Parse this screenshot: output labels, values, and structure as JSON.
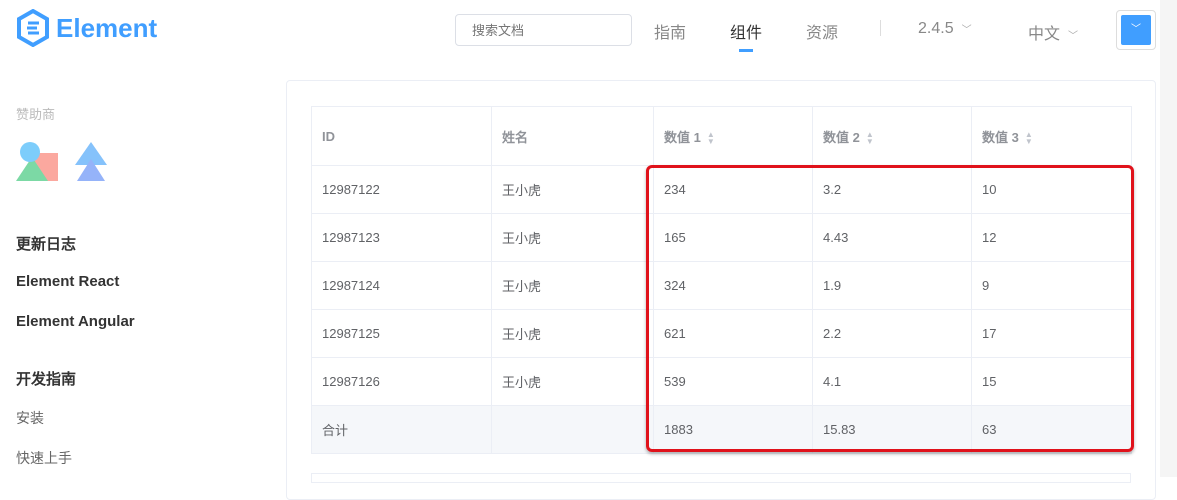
{
  "header": {
    "logo_text": "Element",
    "search_placeholder": "搜索文档",
    "nav": [
      "指南",
      "组件",
      "资源"
    ],
    "active_nav": "组件",
    "version": "2.4.5",
    "language": "中文",
    "accent": "#409eff"
  },
  "sidebar": {
    "sponsor_label": "赞助商",
    "items": [
      "更新日志",
      "Element React",
      "Element Angular",
      "开发指南",
      "安装",
      "快速上手"
    ]
  },
  "table": {
    "columns": [
      "ID",
      "姓名",
      "数值 1",
      "数值 2",
      "数值 3"
    ],
    "rows": [
      [
        "12987122",
        "王小虎",
        "234",
        "3.2",
        "10"
      ],
      [
        "12987123",
        "王小虎",
        "165",
        "4.43",
        "12"
      ],
      [
        "12987124",
        "王小虎",
        "324",
        "1.9",
        "9"
      ],
      [
        "12987125",
        "王小虎",
        "621",
        "2.2",
        "17"
      ],
      [
        "12987126",
        "王小虎",
        "539",
        "4.1",
        "15"
      ]
    ],
    "summary": [
      "合计",
      "",
      "1883",
      "15.83",
      "63"
    ],
    "highlight_color": "#e0121b"
  }
}
